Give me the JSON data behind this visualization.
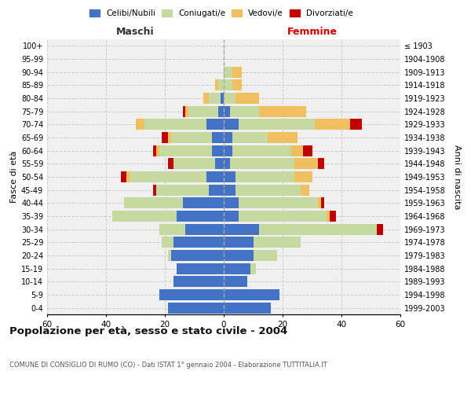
{
  "age_groups": [
    "0-4",
    "5-9",
    "10-14",
    "15-19",
    "20-24",
    "25-29",
    "30-34",
    "35-39",
    "40-44",
    "45-49",
    "50-54",
    "55-59",
    "60-64",
    "65-69",
    "70-74",
    "75-79",
    "80-84",
    "85-89",
    "90-94",
    "95-99",
    "100+"
  ],
  "birth_years": [
    "1999-2003",
    "1994-1998",
    "1989-1993",
    "1984-1988",
    "1979-1983",
    "1974-1978",
    "1969-1973",
    "1964-1968",
    "1959-1963",
    "1954-1958",
    "1949-1953",
    "1944-1948",
    "1939-1943",
    "1934-1938",
    "1929-1933",
    "1924-1928",
    "1919-1923",
    "1914-1918",
    "1909-1913",
    "1904-1908",
    "≤ 1903"
  ],
  "maschi": {
    "celibi": [
      19,
      22,
      17,
      16,
      18,
      17,
      13,
      16,
      14,
      5,
      6,
      3,
      4,
      4,
      6,
      2,
      1,
      0,
      0,
      0,
      0
    ],
    "coniugati": [
      0,
      0,
      0,
      0,
      1,
      4,
      9,
      22,
      20,
      18,
      26,
      14,
      18,
      14,
      21,
      10,
      4,
      2,
      0,
      0,
      0
    ],
    "vedovi": [
      0,
      0,
      0,
      0,
      0,
      0,
      0,
      0,
      0,
      0,
      1,
      0,
      1,
      1,
      3,
      1,
      2,
      1,
      0,
      0,
      0
    ],
    "divorziati": [
      0,
      0,
      0,
      0,
      0,
      0,
      0,
      0,
      0,
      1,
      2,
      2,
      1,
      2,
      0,
      1,
      0,
      0,
      0,
      0,
      0
    ]
  },
  "femmine": {
    "nubili": [
      16,
      19,
      8,
      9,
      10,
      10,
      12,
      5,
      5,
      4,
      4,
      2,
      3,
      3,
      5,
      2,
      0,
      0,
      0,
      0,
      0
    ],
    "coniugate": [
      0,
      0,
      0,
      2,
      8,
      16,
      40,
      30,
      27,
      22,
      20,
      22,
      20,
      12,
      26,
      10,
      4,
      3,
      3,
      0,
      0
    ],
    "vedove": [
      0,
      0,
      0,
      0,
      0,
      0,
      0,
      1,
      1,
      3,
      6,
      8,
      4,
      10,
      12,
      16,
      8,
      3,
      3,
      0,
      0
    ],
    "divorziate": [
      0,
      0,
      0,
      0,
      0,
      0,
      2,
      2,
      1,
      0,
      0,
      2,
      3,
      0,
      4,
      0,
      0,
      0,
      0,
      0,
      0
    ]
  },
  "colors": {
    "celibi": "#4472c4",
    "coniugati": "#c5d9a0",
    "vedovi": "#f0c060",
    "divorziati": "#c00000"
  },
  "title": "Popolazione per età, sesso e stato civile - 2004",
  "subtitle": "COMUNE DI CONSIGLIO DI RUMO (CO) - Dati ISTAT 1° gennaio 2004 - Elaborazione TUTTITALIA.IT",
  "label_maschi": "Maschi",
  "label_femmine": "Femmine",
  "ylabel_left": "Fasce di età",
  "ylabel_right": "Anni di nascita",
  "xlim": 60,
  "legend_labels": [
    "Celibi/Nubili",
    "Coniugati/e",
    "Vedovi/e",
    "Divorziati/e"
  ],
  "bg_color": "#ffffff",
  "plot_bg_color": "#f0f0f0"
}
